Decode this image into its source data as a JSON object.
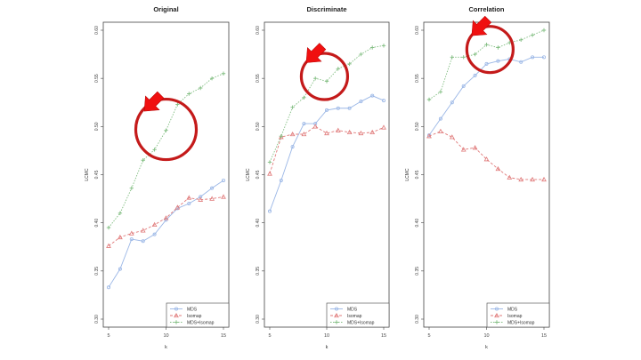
{
  "colors": {
    "mds": "#9bb7e6",
    "isomap": "#e07a7a",
    "mds_isomap": "#82be82",
    "highlight": "#c41a1a",
    "arrow": "#f01010",
    "axis": "#444444"
  },
  "chart_data": [
    {
      "type": "line",
      "title": "Original",
      "xlabel": "k",
      "ylabel": "LCMC",
      "xlim": [
        5,
        15
      ],
      "ylim": [
        0.3,
        0.6
      ],
      "x_ticks": [
        5,
        10,
        15
      ],
      "y_ticks": [
        "0.30",
        "0.35",
        "0.40",
        "0.45",
        "0.50",
        "0.55",
        "0.60"
      ],
      "x": [
        5,
        6,
        7,
        8,
        9,
        10,
        11,
        12,
        13,
        14,
        15
      ],
      "series": [
        {
          "name": "MDS",
          "marker": "circle",
          "values": [
            0.333,
            0.352,
            0.383,
            0.381,
            0.388,
            0.403,
            0.415,
            0.42,
            0.427,
            0.436,
            0.444
          ]
        },
        {
          "name": "Isomap",
          "marker": "triangle",
          "values": [
            0.376,
            0.385,
            0.389,
            0.392,
            0.398,
            0.405,
            0.416,
            0.426,
            0.424,
            0.425,
            0.427
          ]
        },
        {
          "name": "MDS+Isomap",
          "marker": "plus",
          "values": [
            0.395,
            0.41,
            0.436,
            0.465,
            0.476,
            0.496,
            0.523,
            0.534,
            0.54,
            0.55,
            0.555
          ]
        }
      ],
      "legend_position": "bottom-right",
      "highlight": {
        "x": 10,
        "y": 0.497
      }
    },
    {
      "type": "line",
      "title": "Discriminate",
      "xlabel": "k",
      "ylabel": "LCMC",
      "xlim": [
        5,
        15
      ],
      "ylim": [
        0.3,
        0.6
      ],
      "x_ticks": [
        5,
        10,
        15
      ],
      "y_ticks": [
        "0.30",
        "0.35",
        "0.40",
        "0.45",
        "0.50",
        "0.55",
        "0.60"
      ],
      "x": [
        5,
        6,
        7,
        8,
        9,
        10,
        11,
        12,
        13,
        14,
        15
      ],
      "series": [
        {
          "name": "MDS",
          "marker": "circle",
          "values": [
            0.412,
            0.444,
            0.479,
            0.503,
            0.503,
            0.517,
            0.519,
            0.519,
            0.526,
            0.532,
            0.527
          ]
        },
        {
          "name": "Isomap",
          "marker": "triangle",
          "values": [
            0.451,
            0.489,
            0.492,
            0.492,
            0.5,
            0.493,
            0.496,
            0.494,
            0.493,
            0.494,
            0.499
          ]
        },
        {
          "name": "MDS+Isomap",
          "marker": "plus",
          "values": [
            0.463,
            0.49,
            0.52,
            0.53,
            0.55,
            0.547,
            0.56,
            0.565,
            0.575,
            0.582,
            0.584
          ]
        }
      ],
      "legend_position": "bottom-right",
      "highlight": {
        "x": 9.8,
        "y": 0.552
      }
    },
    {
      "type": "line",
      "title": "Correlation",
      "xlabel": "k",
      "ylabel": "LCMC",
      "xlim": [
        5,
        15
      ],
      "ylim": [
        0.3,
        0.6
      ],
      "x_ticks": [
        5,
        10,
        15
      ],
      "y_ticks": [
        "0.30",
        "0.35",
        "0.40",
        "0.45",
        "0.50",
        "0.55",
        "0.60"
      ],
      "x": [
        5,
        6,
        7,
        8,
        9,
        10,
        11,
        12,
        13,
        14,
        15
      ],
      "series": [
        {
          "name": "MDS",
          "marker": "circle",
          "values": [
            0.491,
            0.508,
            0.525,
            0.542,
            0.553,
            0.565,
            0.568,
            0.57,
            0.567,
            0.572,
            0.572
          ]
        },
        {
          "name": "Isomap",
          "marker": "triangle",
          "values": [
            0.49,
            0.495,
            0.489,
            0.476,
            0.478,
            0.466,
            0.456,
            0.447,
            0.445,
            0.445,
            0.445
          ]
        },
        {
          "name": "MDS+Isomap",
          "marker": "plus",
          "values": [
            0.528,
            0.536,
            0.572,
            0.572,
            0.575,
            0.585,
            0.582,
            0.587,
            0.59,
            0.595,
            0.6
          ]
        }
      ],
      "legend_position": "bottom-right",
      "highlight": {
        "x": 10.3,
        "y": 0.58
      }
    }
  ]
}
